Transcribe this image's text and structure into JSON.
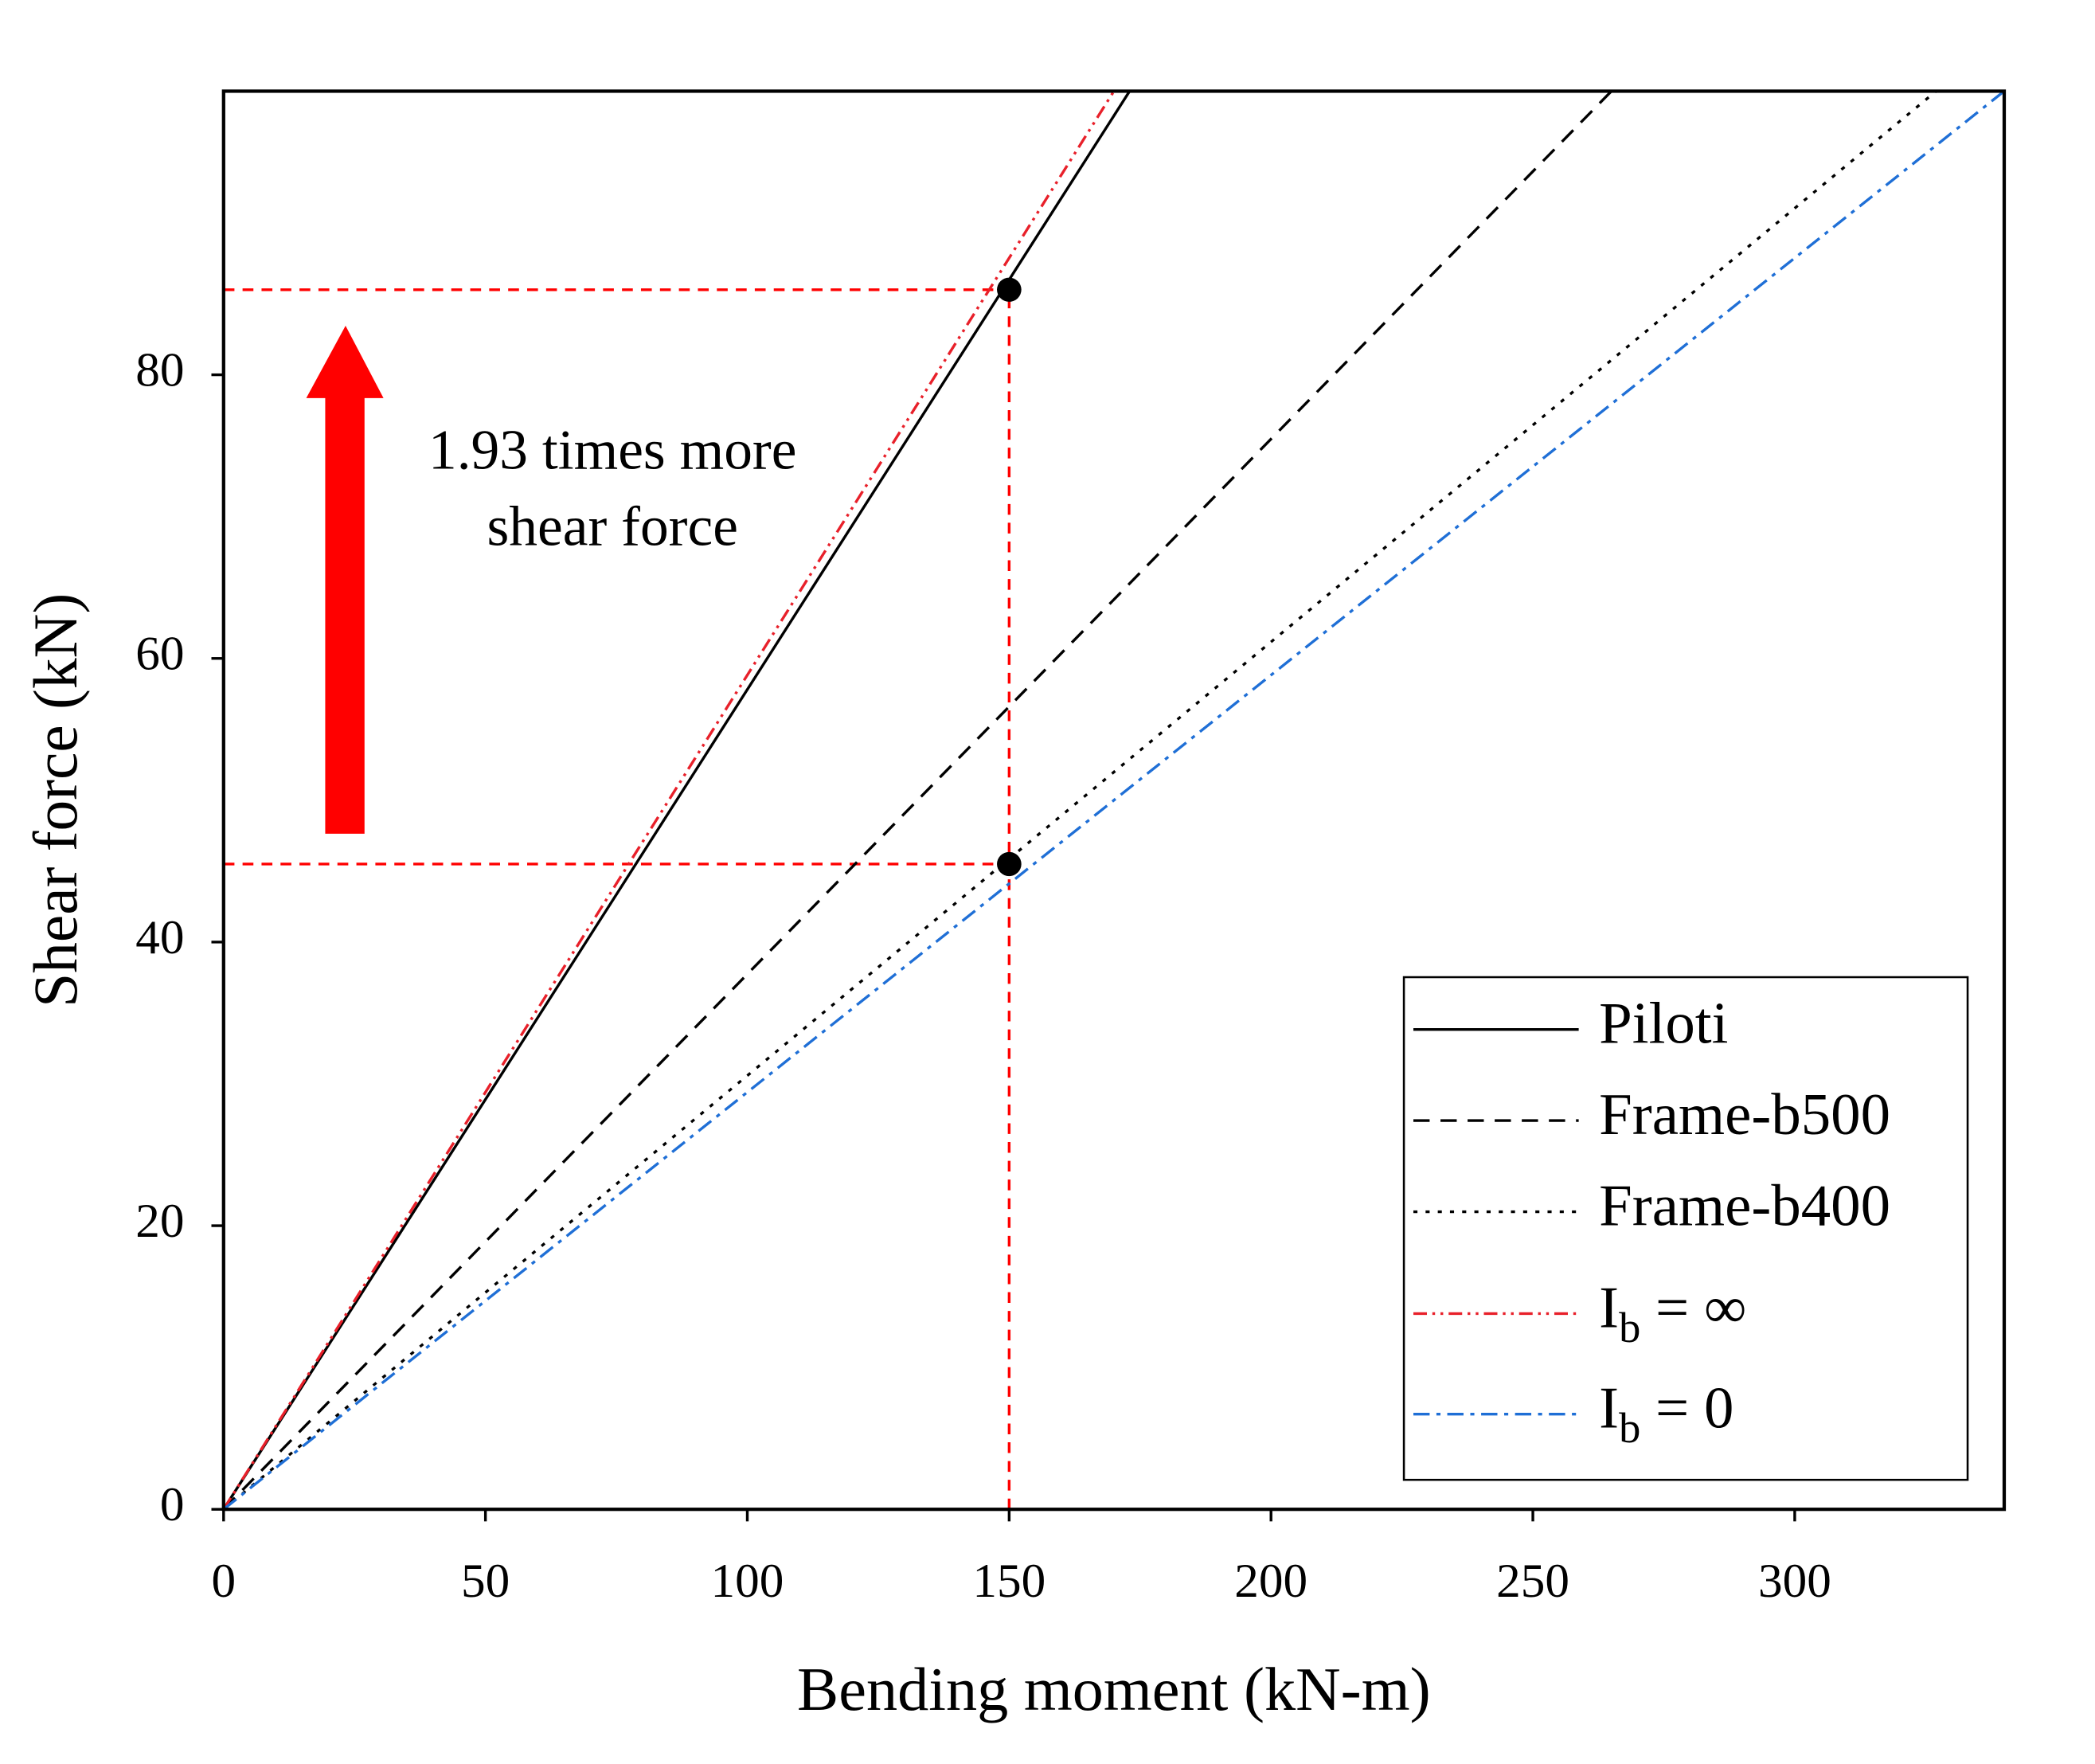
{
  "chart_data": {
    "type": "line",
    "xlabel": "Bending moment (kN-m)",
    "ylabel": "Shear force (kN)",
    "xlim": [
      0,
      340
    ],
    "ylim": [
      0,
      100
    ],
    "xticks": [
      0,
      50,
      100,
      150,
      200,
      250,
      300
    ],
    "yticks": [
      0,
      20,
      40,
      60,
      80
    ],
    "legend": "lower right",
    "series": [
      {
        "name": "Piloti",
        "color": "#000000",
        "linestyle": "solid",
        "x": [
          0,
          173
        ],
        "values": [
          0,
          100
        ]
      },
      {
        "name": "Frame-b500",
        "color": "#000000",
        "linestyle": "dashed",
        "x": [
          0,
          265
        ],
        "values": [
          0,
          100
        ]
      },
      {
        "name": "Frame-b400",
        "color": "#000000",
        "linestyle": "dotted",
        "x": [
          0,
          327
        ],
        "values": [
          0,
          100
        ]
      },
      {
        "name": "Ib = ∞",
        "color": "#e8202a",
        "linestyle": "dashdotdot",
        "x": [
          0,
          170
        ],
        "values": [
          0,
          100
        ]
      },
      {
        "name": "Ib = 0",
        "color": "#1f6fd6",
        "linestyle": "dashdot",
        "x": [
          0,
          340
        ],
        "values": [
          0,
          100
        ]
      }
    ],
    "points": {
      "color": "#000000",
      "x": [
        150,
        150
      ],
      "values": [
        86,
        45.5
      ]
    },
    "reference_lines": {
      "color": "#ff0000",
      "lines": [
        {
          "x": [
            0,
            150
          ],
          "values": [
            86,
            86
          ]
        },
        {
          "x": [
            0,
            150
          ],
          "values": [
            45.5,
            45.5
          ]
        },
        {
          "x": [
            150,
            150
          ],
          "values": [
            0,
            86
          ]
        }
      ]
    },
    "annotation": {
      "lines": [
        "1.93 times more",
        "shear force"
      ],
      "arrow_color": "#ff0000"
    }
  }
}
